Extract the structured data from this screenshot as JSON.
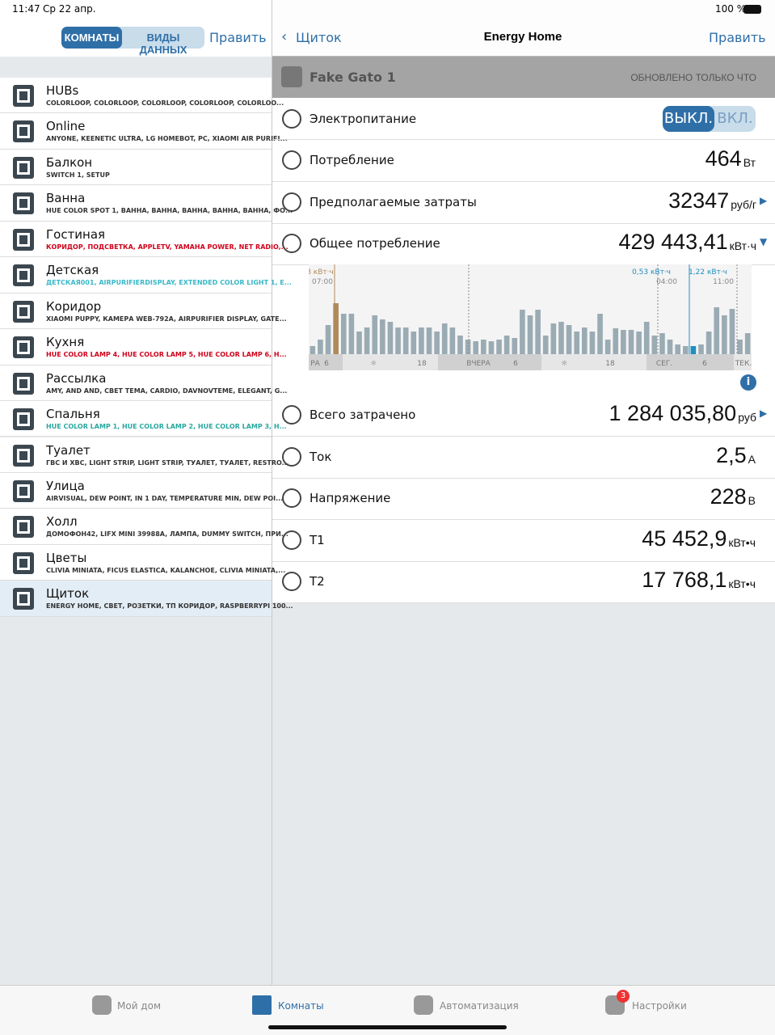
{
  "status": {
    "time": "11:47",
    "date": "Ср 22 апр.",
    "battery": "100 %"
  },
  "sidebar": {
    "segments": [
      "КОМНАТЫ",
      "ВИДЫ ДАННЫХ"
    ],
    "edit": "Править",
    "rooms": [
      {
        "name": "HUBs",
        "subtitle": "COLORLOOP, COLORLOOP, COLORLOOP, COLORLOOP, COLORLOO...",
        "color": "#333333"
      },
      {
        "name": "Online",
        "subtitle": "ANYONE, KEENETIC ULTRA, LG HOMEBOT, PC, XIAOMI AIR PURIFI...",
        "color": "#333333"
      },
      {
        "name": "Балкон",
        "subtitle": "SWITCH 1, SETUP",
        "color": "#333333"
      },
      {
        "name": "Ванна",
        "subtitle": "HUE COLOR SPOT 1, ВАННА, ВАННА, ВАННА, ВАННА, ВАННА, ФО...",
        "color": "#333333"
      },
      {
        "name": "Гостиная",
        "subtitle": "КОРИДОР, ПОДСВЕТКА, APPLETV, YAMAHA POWER, NET RADIO,...",
        "color": "#d0021b"
      },
      {
        "name": "Детская",
        "subtitle": "ДЕТСКАЯ001, AIRPURIFIERDISPLAY, EXTENDED COLOR LIGHT 1, E...",
        "color": "#3ab8c8"
      },
      {
        "name": "Коридор",
        "subtitle": "XIAOMI PUPPY, КАМЕРА WEB-792A, AIRPURIFIER DISPLAY, GATE...",
        "color": "#333333"
      },
      {
        "name": "Кухня",
        "subtitle": "HUE COLOR LAMP 4, HUE COLOR LAMP 5, HUE COLOR LAMP 6, H...",
        "color": "#d0021b"
      },
      {
        "name": "Рассылка",
        "subtitle": "AMY, AND AND, СВЕТ ТЕМА, CARDIO, DAVNOVTEME, ELEGANT, G...",
        "color": "#333333"
      },
      {
        "name": "Спальня",
        "subtitle": "HUE COLOR LAMP 1, HUE COLOR LAMP 2, HUE COLOR LAMP 3, H...",
        "color": "#2aa8a0"
      },
      {
        "name": "Туалет",
        "subtitle": "ГВС И ХВС, LIGHT STRIP, LIGHT STRIP, ТУАЛЕТ, ТУАЛЕТ, RESTRO...",
        "color": "#333333"
      },
      {
        "name": "Улица",
        "subtitle": "AIRVISUAL, DEW POINT, IN 1 DAY, TEMPERATURE MIN, DEW POI...",
        "color": "#333333"
      },
      {
        "name": "Холл",
        "subtitle": "ДОМОФОН42, LIFX MINI 39988A, ЛАМПА, DUMMY SWITCH, ПРИ...",
        "color": "#333333"
      },
      {
        "name": "Цветы",
        "subtitle": "CLIVIA MINIATA, FICUS ELASTICA, KALANCHOE, CLIVIA MINIATA,...",
        "color": "#333333"
      },
      {
        "name": "Щиток",
        "subtitle": "ENERGY HOME, СВЕТ, РОЗЕТКИ, ТП КОРИДОР, RASPBERRYPI 100...",
        "color": "#333333"
      }
    ]
  },
  "detail": {
    "back": "Щиток",
    "title": "Energy Home",
    "edit": "Править",
    "section": {
      "title": "Fake Gato 1",
      "status": "ОБНОВЛЕНО ТОЛЬКО ЧТО"
    },
    "power": {
      "label": "Электропитание",
      "off": "ВЫКЛ.",
      "on": "ВКЛ."
    },
    "rows_top": [
      {
        "label": "Потребление",
        "value": "464",
        "unit": "Вт"
      },
      {
        "label": "Предполагаемые затраты",
        "value": "32347",
        "unit": "руб/г",
        "arrow": "right"
      },
      {
        "label": "Общее потребление",
        "value": "429 443,41",
        "unit": "кВт·ч",
        "arrow": "down"
      }
    ],
    "rows_bottom": [
      {
        "label": "Всего затрачено",
        "value": "1 284 035,80",
        "unit": "руб",
        "arrow": "right"
      },
      {
        "label": "Ток",
        "value": "2,5",
        "unit": "А"
      },
      {
        "label": "Напряжение",
        "value": "228",
        "unit": "В"
      },
      {
        "label": "T1",
        "value": "45 452,9",
        "unit": "кВт•ч"
      },
      {
        "label": "T2",
        "value": "17 768,1",
        "unit": "кВт•ч"
      }
    ]
  },
  "chart_data": {
    "type": "bar",
    "color": "#9aabb4",
    "highlights": {
      "3": "#b08a5a",
      "49": "#1f8fc0"
    },
    "values": [
      10,
      18,
      36,
      63,
      50,
      50,
      28,
      33,
      48,
      43,
      40,
      33,
      33,
      28,
      33,
      33,
      28,
      38,
      33,
      23,
      18,
      16,
      18,
      16,
      18,
      23,
      20,
      55,
      48,
      55,
      23,
      38,
      40,
      36,
      28,
      33,
      28,
      50,
      18,
      32,
      30,
      30,
      28,
      40,
      23,
      26,
      18,
      12,
      10,
      10,
      12,
      28,
      58,
      48,
      56,
      18,
      26
    ],
    "x_labels": [
      "РА",
      "6",
      "☼",
      "18",
      "ВЧЕРА",
      "6",
      "☼",
      "18",
      "СЕГ.",
      "6",
      "ТЕК."
    ],
    "annotations": [
      "8 кВт·ч",
      "07:00",
      "0,53 кВт·ч",
      "04:00",
      "1,22 кВт·ч",
      "11:00"
    ]
  },
  "tabs": [
    "Мой дом",
    "Комнаты",
    "Автоматизация",
    "Настройки"
  ],
  "badge": "3"
}
